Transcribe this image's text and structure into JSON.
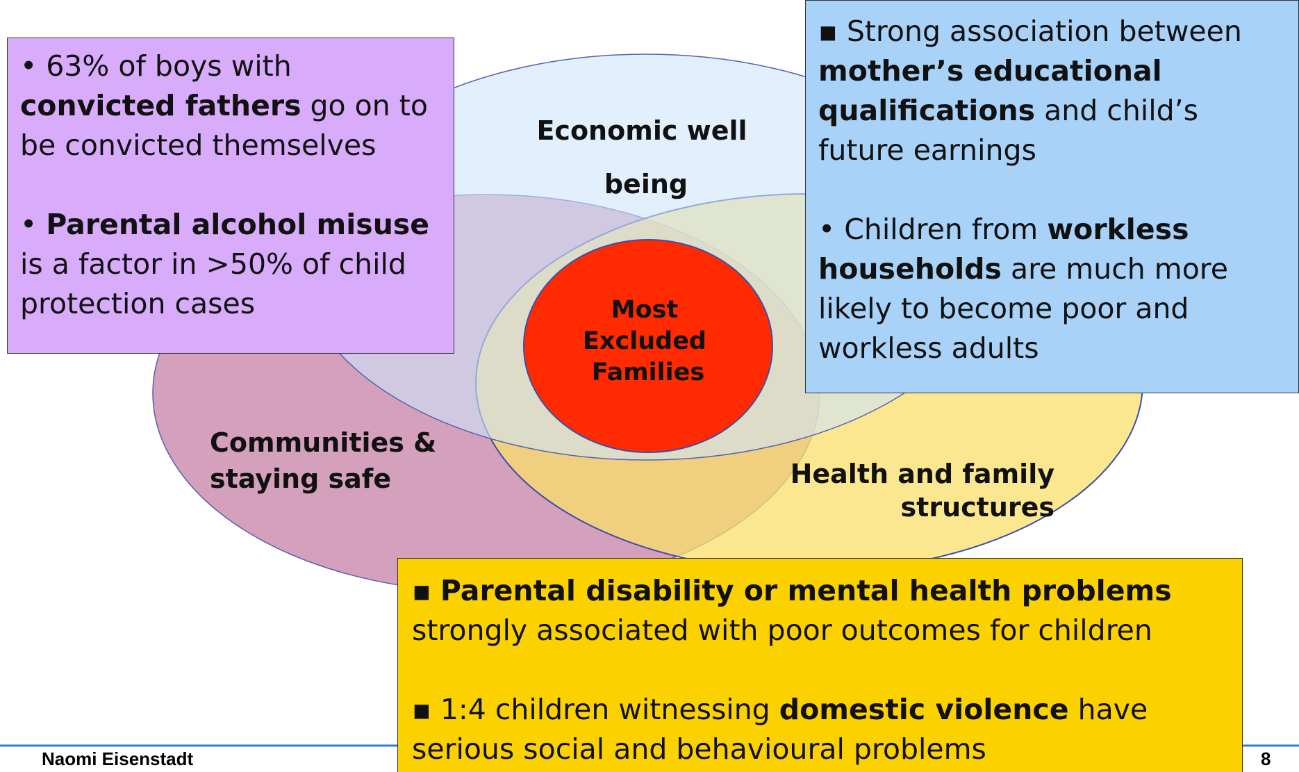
{
  "diagram": {
    "circles": {
      "economic": [
        "Economic well",
        "being"
      ],
      "communities": [
        "Communities &",
        "staying safe"
      ],
      "health": [
        "Health and family",
        "structures"
      ],
      "center": [
        "Most",
        "Excluded",
        "Families"
      ]
    },
    "boxes": {
      "left": [
        [
          {
            "text": "• 63% of boys with "
          },
          {
            "text": "convicted fathers",
            "bold": true
          },
          {
            "text": " go on to be convicted themselves"
          }
        ],
        [
          {
            "text": "• "
          },
          {
            "text": "Parental alcohol misuse",
            "bold": true
          },
          {
            "text": " is a factor in >50% of child protection cases"
          }
        ]
      ],
      "right": [
        [
          {
            "text": "▪ Strong association between "
          },
          {
            "text": "mother’s educational qualifications",
            "bold": true
          },
          {
            "text": " and child’s future earnings"
          }
        ],
        [
          {
            "text": "• Children from "
          },
          {
            "text": "workless households",
            "bold": true
          },
          {
            "text": " are much more likely to become poor and workless adults"
          }
        ]
      ],
      "bottom": [
        [
          {
            "text": "▪ "
          },
          {
            "text": "Parental disability or mental health problems",
            "bold": true
          },
          {
            "text": " strongly associated with poor outcomes for children"
          }
        ],
        [
          {
            "text": "▪ 1:4 children witnessing "
          },
          {
            "text": "domestic violence",
            "bold": true
          },
          {
            "text": " have serious social and behavioural problems"
          }
        ]
      ]
    }
  },
  "footer": {
    "author": "Naomi Eisenstadt",
    "page": "8"
  }
}
